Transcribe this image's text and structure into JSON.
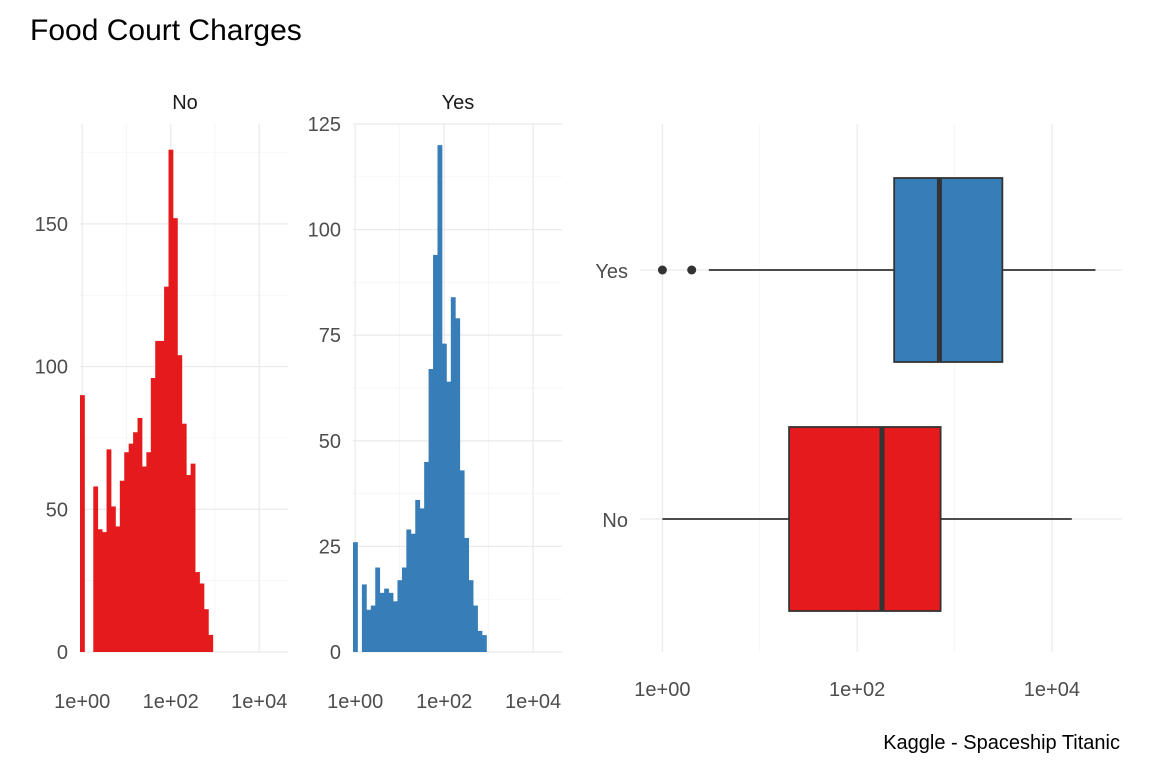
{
  "colors": {
    "no": "#E41A1C",
    "yes": "#377EB8",
    "outline": "#333333"
  },
  "chart_data": [
    {
      "type": "bar",
      "title": "Food Court Charges",
      "facet": "No",
      "x_scale": "log10",
      "bin_start_log10": 0,
      "bin_width_log10": 0.1,
      "xlim_log10": [
        -0.05,
        4.65
      ],
      "ylim": [
        0,
        185
      ],
      "x_ticks": [
        "1e+00",
        "1e+02",
        "1e+04"
      ],
      "y_ticks": [
        "0",
        "50",
        "100",
        "150"
      ],
      "counts": [
        90,
        0,
        0,
        58,
        43,
        42,
        71,
        51,
        44,
        60,
        70,
        73,
        77,
        82,
        65,
        70,
        96,
        109,
        109,
        128,
        176,
        152,
        104,
        80,
        62,
        66,
        28,
        24,
        15,
        6
      ]
    },
    {
      "type": "bar",
      "facet": "Yes",
      "x_scale": "log10",
      "bin_start_log10": 0,
      "bin_width_log10": 0.1,
      "xlim_log10": [
        -0.05,
        4.65
      ],
      "ylim": [
        0,
        125
      ],
      "x_ticks": [
        "1e+00",
        "1e+02",
        "1e+04"
      ],
      "y_ticks": [
        "0",
        "25",
        "50",
        "75",
        "100",
        "125"
      ],
      "counts": [
        26,
        0,
        16,
        10,
        11,
        20,
        14,
        15,
        14,
        12,
        17,
        20,
        29,
        28,
        36,
        34,
        45,
        67,
        94,
        120,
        73,
        64,
        84,
        79,
        43,
        27,
        17,
        11,
        5,
        4
      ]
    },
    {
      "type": "box",
      "x_scale": "log10",
      "categories": [
        "No",
        "Yes"
      ],
      "x_ticks": [
        "1e+00",
        "1e+02",
        "1e+04"
      ],
      "boxes": [
        {
          "name": "No",
          "min": 1,
          "q1": 20,
          "median": 180,
          "q3": 720,
          "max": 16000,
          "outliers": []
        },
        {
          "name": "Yes",
          "min": 3,
          "q1": 240,
          "median": 700,
          "q3": 3100,
          "max": 28000,
          "outliers": [
            1,
            2
          ]
        }
      ]
    }
  ],
  "caption": "Kaggle - Spaceship Titanic"
}
